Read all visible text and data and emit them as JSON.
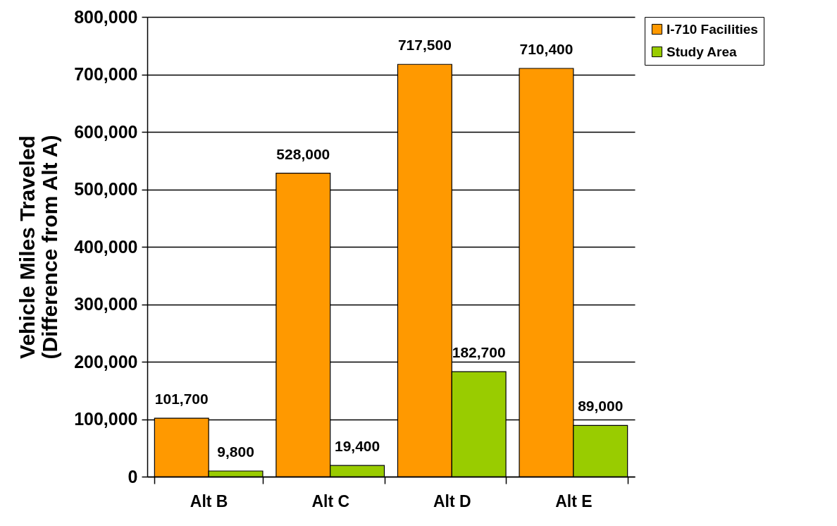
{
  "chart_data": {
    "type": "bar",
    "ylabel": "Vehicle Miles Traveled\n(Difference from Alt A)",
    "categories": [
      "Alt B",
      "Alt C",
      "Alt D",
      "Alt E"
    ],
    "series": [
      {
        "name": "I-710 Facilities",
        "color": "#ff9900",
        "values": [
          101700,
          528000,
          717500,
          710400
        ],
        "value_labels": [
          "101,700",
          "528,000",
          "717,500",
          "710,400"
        ]
      },
      {
        "name": "Study Area",
        "color": "#99cc00",
        "values": [
          9800,
          19400,
          182700,
          89000
        ],
        "value_labels": [
          "9,800",
          "19,400",
          "182,700",
          "89,000"
        ]
      }
    ],
    "ylim": [
      0,
      800000
    ],
    "yticks": [
      {
        "value": 0,
        "label": "0"
      },
      {
        "value": 100000,
        "label": "100,000"
      },
      {
        "value": 200000,
        "label": "200,000"
      },
      {
        "value": 300000,
        "label": "300,000"
      },
      {
        "value": 400000,
        "label": "400,000"
      },
      {
        "value": 500000,
        "label": "500,000"
      },
      {
        "value": 600000,
        "label": "600,000"
      },
      {
        "value": 700000,
        "label": "700,000"
      },
      {
        "value": 800000,
        "label": "800,000"
      }
    ],
    "grid": "y",
    "legend": "right"
  }
}
